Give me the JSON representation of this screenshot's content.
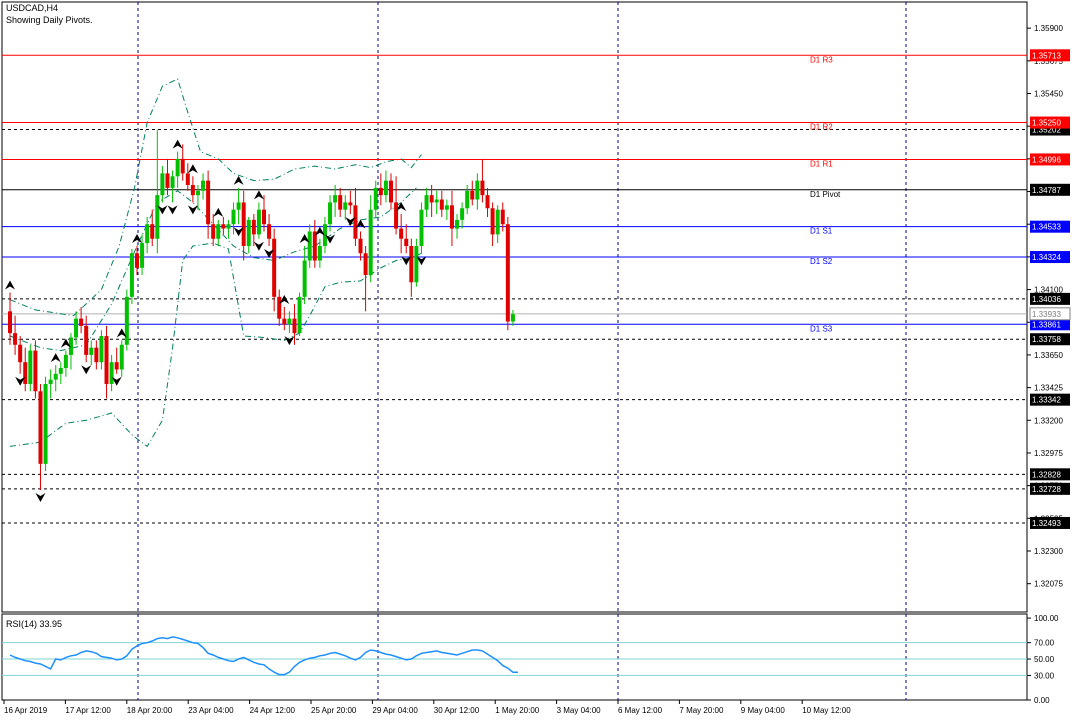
{
  "header": {
    "symbol": "USDCAD,H4",
    "subtitle": "Showing Daily Pivots."
  },
  "chart_data": {
    "type": "candlestick",
    "timeframe": "H4",
    "price_axis": {
      "ylim": [
        1.3188,
        1.3608
      ],
      "ticks": [
        "1.35900",
        "1.35675",
        "1.35450",
        "1.35225",
        "1.35000",
        "1.34775",
        "1.34550",
        "1.34325",
        "1.34100",
        "1.33875",
        "1.33650",
        "1.33425",
        "1.33200",
        "1.32975",
        "1.32750",
        "1.32525",
        "1.32300",
        "1.32075"
      ]
    },
    "time_axis": [
      "16 Apr 2019",
      "17 Apr 12:00",
      "18 Apr 20:00",
      "23 Apr 04:00",
      "24 Apr 12:00",
      "25 Apr 20:00",
      "29 Apr 04:00",
      "30 Apr 12:00",
      "1 May 20:00",
      "3 May 04:00",
      "6 May 12:00",
      "7 May 20:00",
      "9 May 04:00",
      "10 May 12:00"
    ],
    "pivot_levels": [
      {
        "label": "D1 R3",
        "value": 1.35713,
        "tag": "1.35713",
        "color": "#ff0000"
      },
      {
        "label": "D1 R2",
        "value": 1.3525,
        "tag": "1.35250",
        "color": "#ff0000"
      },
      {
        "label": "D1 R1",
        "value": 1.34996,
        "tag": "1.34996",
        "color": "#ff0000"
      },
      {
        "label": "D1 Pivot",
        "value": 1.34787,
        "tag": "1.34787",
        "color": "#000000"
      },
      {
        "label": "D1 S1",
        "value": 1.34533,
        "tag": "1.34533",
        "color": "#0000ff"
      },
      {
        "label": "D1 S2",
        "value": 1.34324,
        "tag": "1.34324",
        "color": "#0000ff"
      },
      {
        "label": "D1 S3",
        "value": 1.33861,
        "tag": "1.33861",
        "color": "#0000ff"
      }
    ],
    "dashed_levels": [
      {
        "value": 1.35202,
        "tag": "1.35202"
      },
      {
        "value": 1.34036,
        "tag": "1.34036"
      },
      {
        "value": 1.33758,
        "tag": "1.33758"
      },
      {
        "value": 1.33342,
        "tag": "1.33342"
      },
      {
        "value": 1.32828,
        "tag": "1.32828"
      },
      {
        "value": 1.32728,
        "tag": "1.32728"
      },
      {
        "value": 1.32493,
        "tag": "1.32493"
      }
    ],
    "current_price": {
      "value": 1.33933,
      "tag": "1.33933"
    },
    "candles": [
      [
        1.3395,
        1.3408,
        1.3372,
        1.338
      ],
      [
        1.338,
        1.3392,
        1.3365,
        1.3372
      ],
      [
        1.3372,
        1.3378,
        1.3352,
        1.336
      ],
      [
        1.336,
        1.337,
        1.334,
        1.3345
      ],
      [
        1.3345,
        1.3372,
        1.334,
        1.3368
      ],
      [
        1.3368,
        1.3375,
        1.3335,
        1.334
      ],
      [
        1.334,
        1.3345,
        1.3272,
        1.329
      ],
      [
        1.329,
        1.335,
        1.3285,
        1.3345
      ],
      [
        1.3345,
        1.3355,
        1.3335,
        1.3348
      ],
      [
        1.3348,
        1.3358,
        1.334,
        1.3352
      ],
      [
        1.3352,
        1.336,
        1.3345,
        1.3356
      ],
      [
        1.3356,
        1.3368,
        1.335,
        1.3365
      ],
      [
        1.3365,
        1.338,
        1.3355,
        1.3377
      ],
      [
        1.3377,
        1.3395,
        1.3372,
        1.339
      ],
      [
        1.339,
        1.3398,
        1.338,
        1.3385
      ],
      [
        1.3385,
        1.3392,
        1.336,
        1.3365
      ],
      [
        1.3365,
        1.3375,
        1.3358,
        1.337
      ],
      [
        1.337,
        1.3375,
        1.3355,
        1.336
      ],
      [
        1.336,
        1.3382,
        1.3355,
        1.3378
      ],
      [
        1.3378,
        1.3385,
        1.3335,
        1.3345
      ],
      [
        1.3345,
        1.3365,
        1.334,
        1.336
      ],
      [
        1.336,
        1.337,
        1.3352,
        1.3355
      ],
      [
        1.3355,
        1.3375,
        1.335,
        1.3372
      ],
      [
        1.3372,
        1.341,
        1.3368,
        1.3405
      ],
      [
        1.3405,
        1.3438,
        1.34,
        1.3435
      ],
      [
        1.3435,
        1.344,
        1.342,
        1.3425
      ],
      [
        1.3425,
        1.3448,
        1.342,
        1.3442
      ],
      [
        1.3442,
        1.346,
        1.3435,
        1.3455
      ],
      [
        1.3455,
        1.3465,
        1.344,
        1.3445
      ],
      [
        1.3445,
        1.352,
        1.3435,
        1.3475
      ],
      [
        1.3475,
        1.3495,
        1.347,
        1.349
      ],
      [
        1.349,
        1.35,
        1.3475,
        1.348
      ],
      [
        1.348,
        1.3492,
        1.347,
        1.3488
      ],
      [
        1.3488,
        1.3505,
        1.348,
        1.35
      ],
      [
        1.35,
        1.351,
        1.3485,
        1.349
      ],
      [
        1.349,
        1.3497,
        1.3478,
        1.3482
      ],
      [
        1.3482,
        1.3488,
        1.347,
        1.3475
      ],
      [
        1.3475,
        1.3482,
        1.3465,
        1.3478
      ],
      [
        1.3478,
        1.349,
        1.3472,
        1.3485
      ],
      [
        1.3485,
        1.3492,
        1.3445,
        1.3455
      ],
      [
        1.3455,
        1.3462,
        1.344,
        1.3445
      ],
      [
        1.3445,
        1.3458,
        1.344,
        1.3455
      ],
      [
        1.3455,
        1.346,
        1.3448,
        1.3452
      ],
      [
        1.3452,
        1.3458,
        1.3445,
        1.3455
      ],
      [
        1.3455,
        1.347,
        1.3448,
        1.3465
      ],
      [
        1.3465,
        1.348,
        1.3455,
        1.347
      ],
      [
        1.347,
        1.3478,
        1.343,
        1.344
      ],
      [
        1.344,
        1.346,
        1.3435,
        1.3458
      ],
      [
        1.3458,
        1.3462,
        1.344,
        1.3448
      ],
      [
        1.3448,
        1.347,
        1.3445,
        1.3465
      ],
      [
        1.3465,
        1.3475,
        1.345,
        1.3455
      ],
      [
        1.3455,
        1.3462,
        1.344,
        1.3445
      ],
      [
        1.3445,
        1.3452,
        1.3395,
        1.3405
      ],
      [
        1.3405,
        1.341,
        1.3385,
        1.339
      ],
      [
        1.339,
        1.3398,
        1.3382,
        1.3386
      ],
      [
        1.3386,
        1.3395,
        1.338,
        1.339
      ],
      [
        1.339,
        1.34,
        1.3372,
        1.338
      ],
      [
        1.338,
        1.3408,
        1.3378,
        1.3405
      ],
      [
        1.3405,
        1.344,
        1.34,
        1.343
      ],
      [
        1.343,
        1.3455,
        1.3425,
        1.345
      ],
      [
        1.345,
        1.3458,
        1.3425,
        1.343
      ],
      [
        1.343,
        1.3445,
        1.3425,
        1.344
      ],
      [
        1.344,
        1.346,
        1.3435,
        1.3455
      ],
      [
        1.3455,
        1.3475,
        1.345,
        1.347
      ],
      [
        1.347,
        1.3482,
        1.346,
        1.3475
      ],
      [
        1.3475,
        1.348,
        1.346,
        1.3465
      ],
      [
        1.3465,
        1.3475,
        1.3458,
        1.347
      ],
      [
        1.347,
        1.3478,
        1.3462,
        1.3468
      ],
      [
        1.3468,
        1.348,
        1.344,
        1.3445
      ],
      [
        1.3445,
        1.345,
        1.343,
        1.3435
      ],
      [
        1.3435,
        1.344,
        1.3395,
        1.342
      ],
      [
        1.342,
        1.3475,
        1.3415,
        1.3465
      ],
      [
        1.3465,
        1.3485,
        1.346,
        1.348
      ],
      [
        1.348,
        1.349,
        1.3468,
        1.3475
      ],
      [
        1.3475,
        1.3492,
        1.347,
        1.3485
      ],
      [
        1.3485,
        1.349,
        1.3465,
        1.347
      ],
      [
        1.347,
        1.3488,
        1.3448,
        1.3452
      ],
      [
        1.3452,
        1.3462,
        1.3435,
        1.3445
      ],
      [
        1.3445,
        1.3455,
        1.3435,
        1.344
      ],
      [
        1.344,
        1.3445,
        1.3405,
        1.3415
      ],
      [
        1.3415,
        1.3445,
        1.3412,
        1.344
      ],
      [
        1.344,
        1.347,
        1.3435,
        1.3465
      ],
      [
        1.3465,
        1.348,
        1.346,
        1.3475
      ],
      [
        1.3475,
        1.3482,
        1.346,
        1.347
      ],
      [
        1.347,
        1.3478,
        1.3462,
        1.3472
      ],
      [
        1.3472,
        1.3478,
        1.346,
        1.3465
      ],
      [
        1.3465,
        1.3472,
        1.3458,
        1.3468
      ],
      [
        1.3468,
        1.3478,
        1.344,
        1.3452
      ],
      [
        1.3452,
        1.3462,
        1.3445,
        1.3458
      ],
      [
        1.3458,
        1.347,
        1.3452,
        1.3466
      ],
      [
        1.3466,
        1.3482,
        1.3462,
        1.3478
      ],
      [
        1.3478,
        1.3485,
        1.3468,
        1.3472
      ],
      [
        1.3472,
        1.349,
        1.3465,
        1.3485
      ],
      [
        1.3485,
        1.35,
        1.347,
        1.3475
      ],
      [
        1.3475,
        1.348,
        1.346,
        1.3466
      ],
      [
        1.3466,
        1.347,
        1.344,
        1.3448
      ],
      [
        1.3448,
        1.3468,
        1.3442,
        1.3465
      ],
      [
        1.3465,
        1.347,
        1.345,
        1.3455
      ],
      [
        1.3455,
        1.346,
        1.3382,
        1.3388
      ],
      [
        1.3388,
        1.3396,
        1.3385,
        1.3393
      ]
    ],
    "bollinger_bands": {
      "upper": [
        [
          0,
          1.3403
        ],
        [
          10,
          1.3396
        ],
        [
          25,
          1.3392
        ],
        [
          36,
          1.341
        ],
        [
          43,
          1.344
        ],
        [
          49,
          1.348
        ],
        [
          54,
          1.3525
        ],
        [
          60,
          1.355
        ],
        [
          66,
          1.3555
        ],
        [
          70,
          1.3532
        ],
        [
          75,
          1.3505
        ],
        [
          82,
          1.35
        ],
        [
          88,
          1.349
        ],
        [
          96,
          1.3485
        ],
        [
          104,
          1.3486
        ],
        [
          112,
          1.3493
        ],
        [
          120,
          1.3495
        ],
        [
          128,
          1.3493
        ],
        [
          136,
          1.3496
        ],
        [
          142,
          1.3494
        ],
        [
          148,
          1.3498
        ],
        [
          154,
          1.35
        ],
        [
          158,
          1.3494
        ],
        [
          162,
          1.3503
        ]
      ],
      "middle": [
        [
          0,
          1.3378
        ],
        [
          12,
          1.337
        ],
        [
          20,
          1.3368
        ],
        [
          30,
          1.3372
        ],
        [
          40,
          1.34
        ],
        [
          50,
          1.344
        ],
        [
          58,
          1.347
        ],
        [
          66,
          1.3478
        ],
        [
          72,
          1.347
        ],
        [
          80,
          1.3455
        ],
        [
          88,
          1.344
        ],
        [
          96,
          1.3432
        ],
        [
          104,
          1.343
        ],
        [
          112,
          1.3436
        ],
        [
          120,
          1.344
        ],
        [
          130,
          1.3452
        ],
        [
          138,
          1.3458
        ],
        [
          146,
          1.346
        ],
        [
          154,
          1.347
        ],
        [
          160,
          1.348
        ]
      ],
      "lower": [
        [
          0,
          1.3302
        ],
        [
          12,
          1.3305
        ],
        [
          22,
          1.3318
        ],
        [
          30,
          1.332
        ],
        [
          40,
          1.3325
        ],
        [
          48,
          1.331
        ],
        [
          54,
          1.3302
        ],
        [
          60,
          1.332
        ],
        [
          64,
          1.337
        ],
        [
          68,
          1.343
        ],
        [
          72,
          1.344
        ],
        [
          80,
          1.3442
        ],
        [
          86,
          1.3438
        ],
        [
          92,
          1.3378
        ],
        [
          100,
          1.3377
        ],
        [
          108,
          1.3375
        ],
        [
          114,
          1.338
        ],
        [
          118,
          1.3392
        ],
        [
          124,
          1.3412
        ],
        [
          130,
          1.3415
        ],
        [
          138,
          1.3416
        ],
        [
          146,
          1.3425
        ],
        [
          152,
          1.343
        ],
        [
          158,
          1.3432
        ],
        [
          162,
          1.3435
        ]
      ]
    },
    "fractals": {
      "up": [
        0,
        18,
        22,
        43,
        49,
        65,
        72,
        82,
        90,
        97,
        107,
        115,
        122,
        137,
        153
      ],
      "down": [
        4,
        12,
        30,
        42,
        59,
        64,
        71,
        90,
        98,
        102,
        109,
        125,
        133,
        156,
        161
      ]
    },
    "rsi": {
      "title": "RSI(14) 33.95",
      "last_value": 33.95,
      "ylim": [
        0,
        105
      ],
      "ticks": [
        "100.00",
        "70.00",
        "50.00",
        "30.00",
        "0.00"
      ],
      "levels": [
        70,
        50,
        30
      ],
      "values": [
        55,
        52,
        50,
        48,
        47,
        45,
        44,
        41,
        38,
        50,
        49,
        52,
        54,
        55,
        58,
        60,
        59,
        57,
        53,
        52,
        51,
        49,
        50,
        54,
        62,
        66,
        69,
        70,
        72,
        75,
        76,
        75,
        77,
        76,
        74,
        72,
        70,
        69,
        64,
        57,
        55,
        52,
        50,
        48,
        47,
        50,
        52,
        49,
        46,
        44,
        43,
        38,
        34,
        31,
        31,
        34,
        41,
        46,
        49,
        51,
        52,
        54,
        55,
        57,
        58,
        56,
        54,
        51,
        49,
        52,
        58,
        61,
        60,
        58,
        56,
        55,
        53,
        51,
        49,
        50,
        54,
        57,
        58,
        59,
        60,
        58,
        57,
        56,
        55,
        57,
        59,
        61,
        61,
        60,
        56,
        52,
        48,
        42,
        39,
        34,
        34
      ]
    },
    "colors": {
      "bull": "#00c000",
      "bear": "#e00000",
      "grid": "#0000a0",
      "band": "#008060",
      "rsi_line": "#1e90ff",
      "rsi_level": "#7fd4d4"
    }
  }
}
